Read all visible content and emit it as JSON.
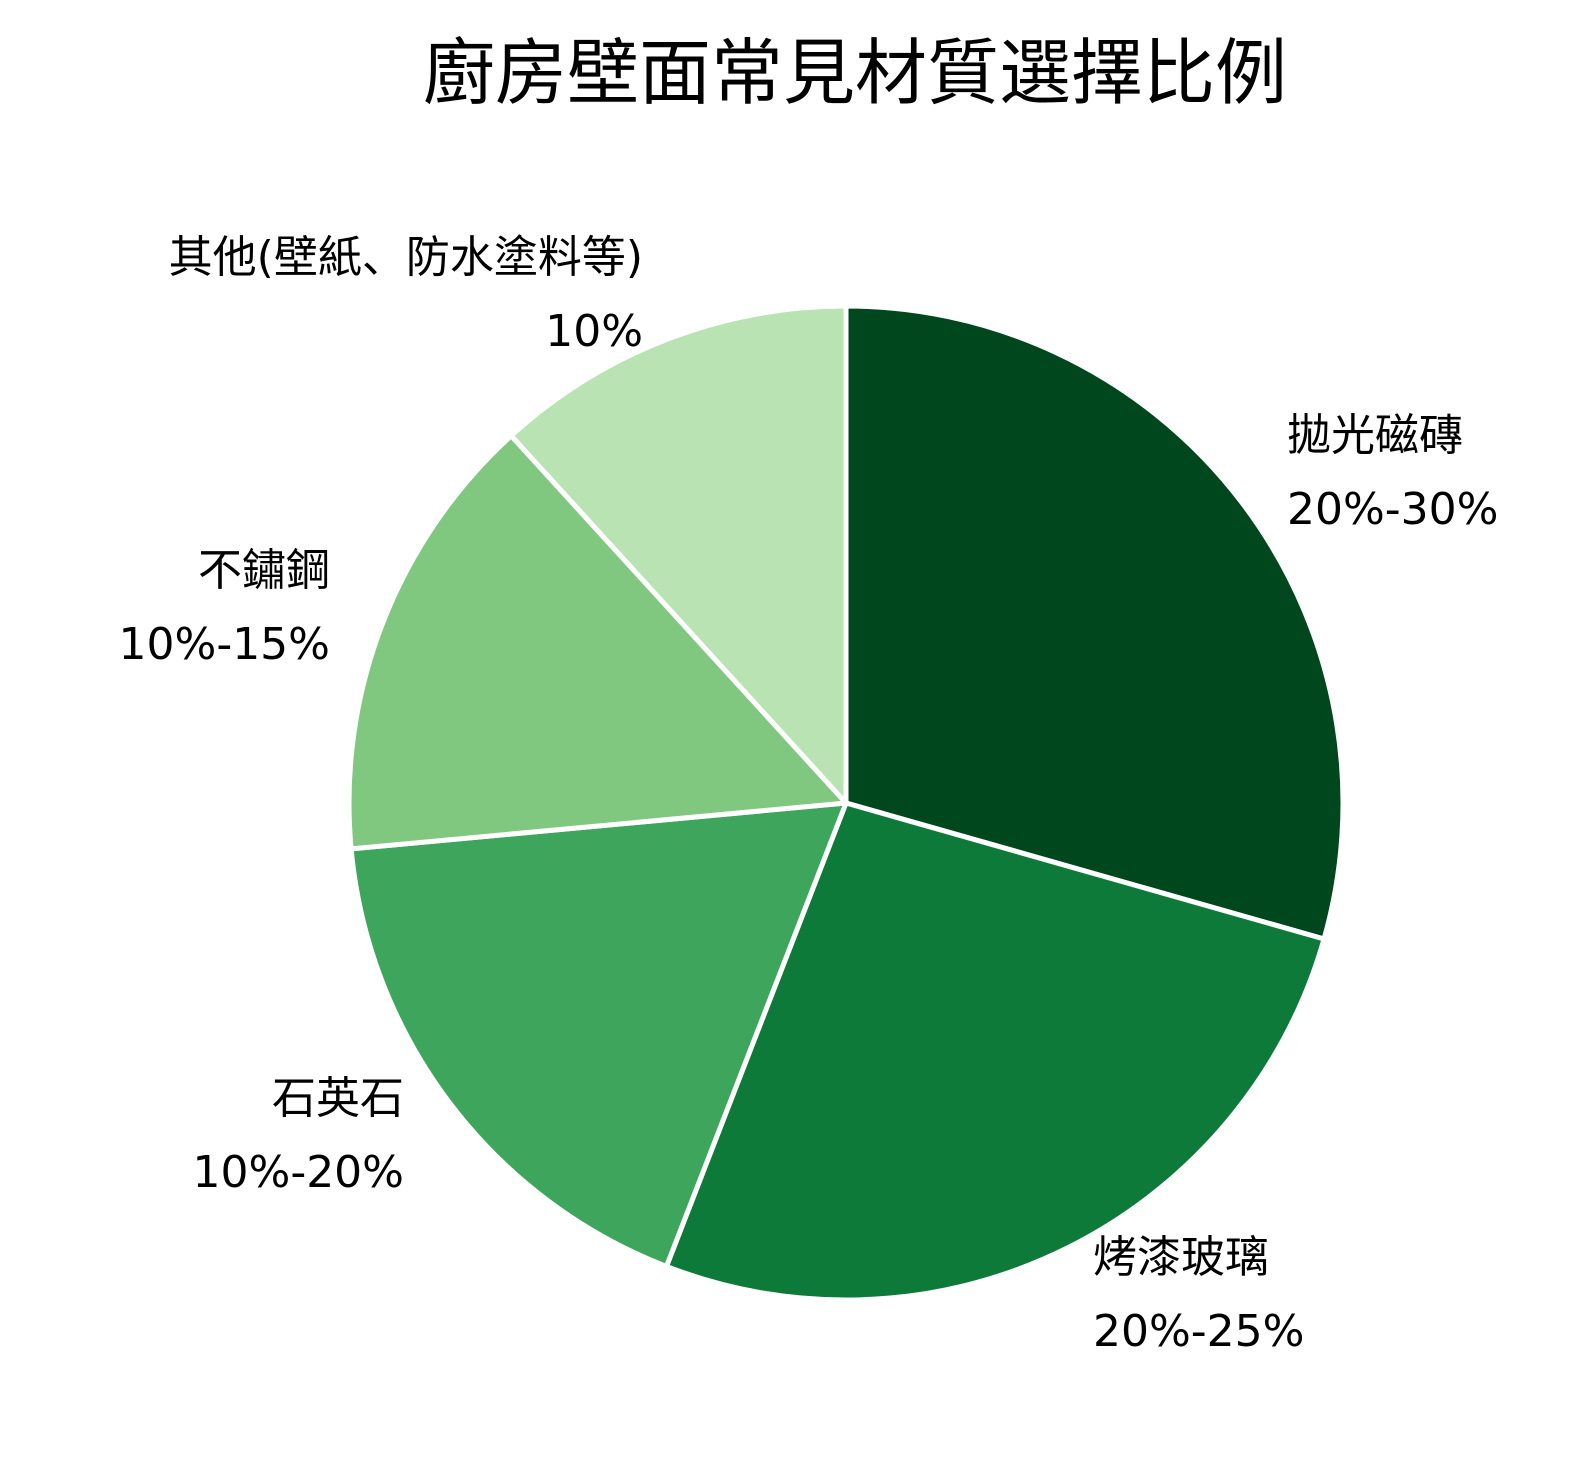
{
  "chart_data": {
    "type": "pie",
    "title": "廚房壁面常見材質選擇比例",
    "start_angle_deg": 90,
    "direction": "clockwise",
    "colors": [
      "#00471e",
      "#0e7a3a",
      "#3ea55c",
      "#80c880",
      "#b9e3b3"
    ],
    "slices": [
      {
        "label": "拋光磁磚",
        "value_text": "20%-30%",
        "value": 25
      },
      {
        "label": "烤漆玻璃",
        "value_text": "20%-25%",
        "value": 22.5
      },
      {
        "label": "石英石",
        "value_text": "10%-20%",
        "value": 15
      },
      {
        "label": "不鏽鋼",
        "value_text": "10%-15%",
        "value": 12.5
      },
      {
        "label": "其他(壁紙、防水塗料等)",
        "value_text": "10%",
        "value": 10
      }
    ]
  }
}
